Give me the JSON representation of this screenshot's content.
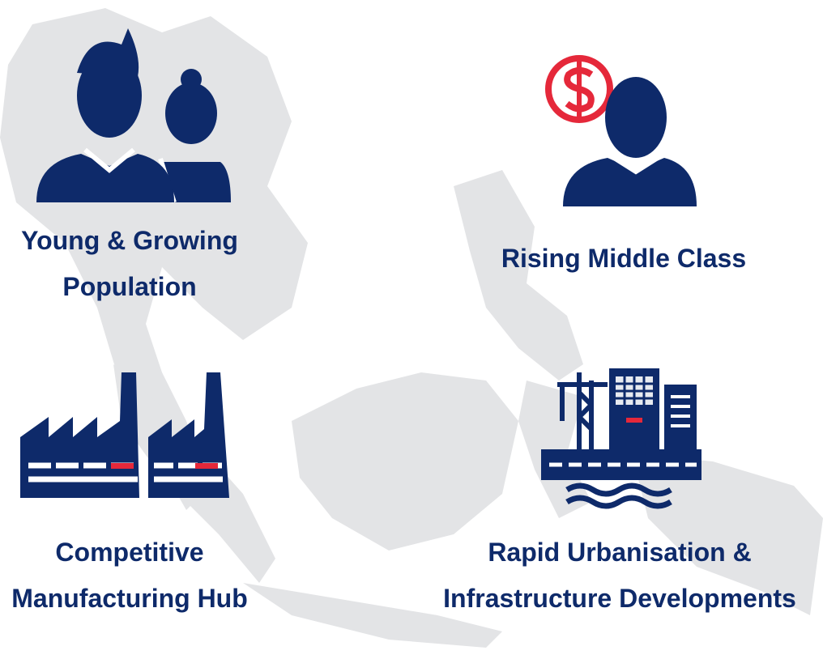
{
  "items": [
    {
      "lines": [
        "Young & Growing",
        "Population"
      ]
    },
    {
      "lines": [
        "Rising Middle Class"
      ]
    },
    {
      "lines": [
        "Competitive",
        "Manufacturing Hub"
      ]
    },
    {
      "lines": [
        "Rapid Urbanisation &",
        "Infrastructure Developments"
      ]
    }
  ]
}
